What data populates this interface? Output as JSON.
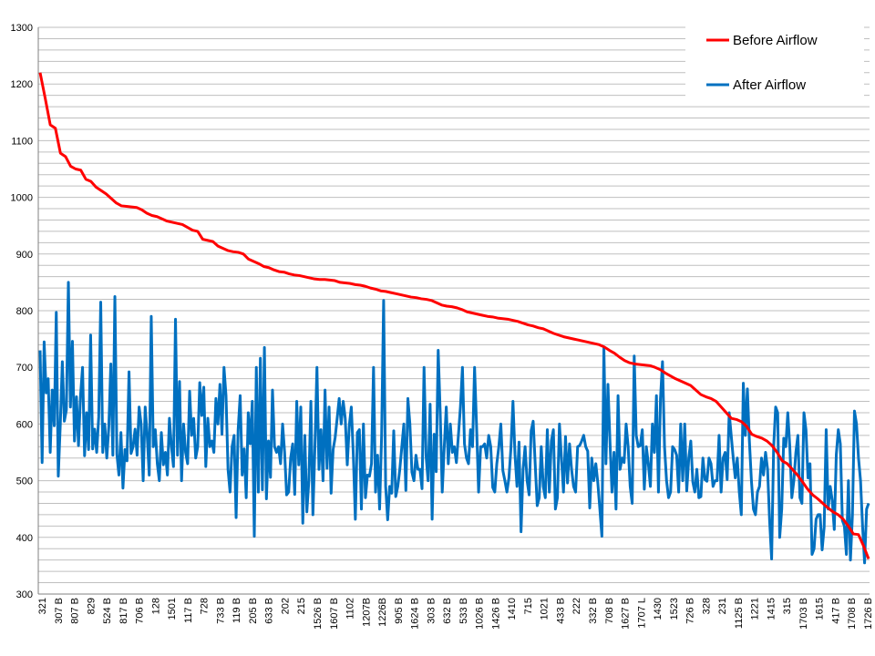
{
  "chart_data": {
    "type": "line",
    "title": "",
    "xlabel": "",
    "ylabel": "",
    "ylim": [
      300,
      1300
    ],
    "ytick_step": 100,
    "grid": "horizontal",
    "legend_position": "top-right",
    "colors": {
      "before": "#ff0000",
      "after": "#0070c0",
      "grid": "#bfbfbf"
    },
    "x_tick_labels": [
      "321",
      "307 B",
      "807 B",
      "829",
      "524 B",
      "817 B",
      "706 B",
      "128",
      "1501",
      "117 B",
      "728",
      "733 B",
      "119 B",
      "205 B",
      "633 B",
      "202",
      "215",
      "1526 B",
      "1607 B",
      "1102",
      "1207B",
      "1226B",
      "905 B",
      "1624 B",
      "303 B",
      "632 B",
      "533 B",
      "1026 B",
      "1426 B",
      "1410",
      "715",
      "1021",
      "433 B",
      "222",
      "332 B",
      "708 B",
      "1627 B",
      "1707 L",
      "1430",
      "1523",
      "726 B",
      "328",
      "231",
      "1125 B",
      "1221",
      "1415",
      "315",
      "1703 B",
      "1615",
      "417 B",
      "1708 B",
      "1726 B"
    ],
    "series": [
      {
        "name": "Before Airflow",
        "values": [
          1220,
          1175,
          1128,
          1122,
          1078,
          1072,
          1055,
          1050,
          1048,
          1032,
          1028,
          1018,
          1012,
          1006,
          998,
          990,
          985,
          984,
          983,
          982,
          978,
          972,
          968,
          966,
          962,
          958,
          956,
          954,
          952,
          947,
          942,
          940,
          926,
          924,
          922,
          914,
          910,
          906,
          904,
          903,
          900,
          891,
          887,
          883,
          878,
          876,
          872,
          869,
          868,
          865,
          863,
          862,
          860,
          858,
          856,
          855,
          855,
          854,
          853,
          850,
          849,
          848,
          846,
          845,
          843,
          840,
          838,
          835,
          834,
          832,
          830,
          828,
          826,
          824,
          823,
          821,
          820,
          818,
          814,
          810,
          808,
          807,
          805,
          802,
          798,
          796,
          794,
          792,
          790,
          789,
          787,
          786,
          785,
          783,
          781,
          778,
          775,
          773,
          770,
          768,
          764,
          760,
          757,
          754,
          752,
          750,
          748,
          746,
          744,
          742,
          740,
          736,
          730,
          725,
          718,
          712,
          708,
          706,
          705,
          704,
          703,
          700,
          696,
          690,
          685,
          680,
          676,
          672,
          668,
          660,
          652,
          648,
          645,
          640,
          630,
          620,
          610,
          608,
          604,
          596,
          582,
          578,
          575,
          570,
          562,
          550,
          535,
          530,
          520,
          510,
          498,
          485,
          475,
          468,
          460,
          452,
          445,
          440,
          432,
          420,
          406,
          405,
          385,
          362
        ],
        "x": "index"
      },
      {
        "name": "After Airflow",
        "values": [
          730,
          532,
          745,
          655,
          680,
          550,
          660,
          597,
          797,
          508,
          600,
          710,
          605,
          625,
          850,
          630,
          746,
          570,
          648,
          562,
          650,
          700,
          544,
          620,
          555,
          757,
          556,
          591,
          550,
          612,
          815,
          550,
          600,
          540,
          595,
          706,
          545,
          825,
          547,
          510,
          585,
          487,
          555,
          535,
          692,
          548,
          560,
          591,
          545,
          630,
          600,
          500,
          630,
          580,
          510,
          790,
          560,
          590,
          530,
          500,
          585,
          528,
          550,
          510,
          610,
          560,
          525,
          785,
          545,
          675,
          500,
          600,
          550,
          530,
          658,
          580,
          610,
          540,
          560,
          673,
          615,
          665,
          525,
          610,
          560,
          570,
          550,
          645,
          600,
          670,
          582,
          700,
          650,
          520,
          480,
          560,
          580,
          435,
          590,
          650,
          510,
          556,
          470,
          620,
          565,
          640,
          402,
          700,
          480,
          716,
          484,
          735,
          468,
          570,
          506,
          660,
          560,
          550,
          560,
          530,
          600,
          550,
          475,
          480,
          540,
          565,
          476,
          640,
          528,
          630,
          425,
          580,
          445,
          500,
          640,
          440,
          560,
          700,
          520,
          590,
          500,
          660,
          522,
          630,
          478,
          555,
          576,
          610,
          645,
          600,
          640,
          610,
          528,
          597,
          630,
          545,
          432,
          585,
          590,
          450,
          600,
          470,
          510,
          508,
          530,
          700,
          480,
          545,
          450,
          580,
          818,
          490,
          431,
          490,
          478,
          588,
          472,
          490,
          520,
          560,
          600,
          483,
          645,
          600,
          515,
          500,
          545,
          520,
          520,
          486,
          700,
          544,
          500,
          635,
          432,
          582,
          516,
          730,
          620,
          480,
          560,
          630,
          530,
          600,
          550,
          560,
          532,
          580,
          630,
          700,
          565,
          540,
          530,
          590,
          560,
          700,
          595,
          480,
          560,
          560,
          565,
          540,
          580,
          560,
          488,
          480,
          530,
          560,
          600,
          518,
          500,
          480,
          505,
          558,
          640,
          546,
          490,
          568,
          410,
          520,
          560,
          500,
          475,
          588,
          605,
          530,
          456,
          470,
          560,
          490,
          470,
          590,
          480,
          570,
          590,
          450,
          470,
          600,
          540,
          480,
          578,
          496,
          565,
          520,
          490,
          480,
          560,
          562,
          570,
          580,
          560,
          552,
          452,
          540,
          500,
          530,
          496,
          450,
          402,
          735,
          530,
          670,
          570,
          480,
          550,
          450,
          650,
          520,
          540,
          532,
          600,
          560,
          490,
          460,
          720,
          580,
          560,
          562,
          590,
          485,
          560,
          530,
          490,
          600,
          550,
          650,
          480,
          645,
          710,
          560,
          500,
          470,
          480,
          560,
          555,
          545,
          480,
          600,
          500,
          600,
          482,
          540,
          570,
          498,
          480,
          520,
          470,
          472,
          540,
          502,
          499,
          540,
          530,
          490,
          500,
          500,
          580,
          480,
          540,
          550,
          502,
          620,
          580,
          540,
          505,
          540,
          480,
          440,
          672,
          580,
          662,
          570,
          500,
          450,
          440,
          480,
          490,
          540,
          510,
          550,
          520,
          430,
          362,
          560,
          630,
          620,
          400,
          450,
          575,
          560,
          620,
          560,
          470,
          500,
          550,
          580,
          470,
          460,
          620,
          590,
          505,
          530,
          370,
          380,
          432,
          440,
          440,
          378,
          418,
          590,
          450,
          490,
          465,
          414,
          546,
          590,
          565,
          430,
          420,
          370,
          500,
          360,
          440,
          623,
          600,
          540,
          500,
          420,
          355,
          450,
          460
        ],
        "x": "index"
      }
    ]
  }
}
